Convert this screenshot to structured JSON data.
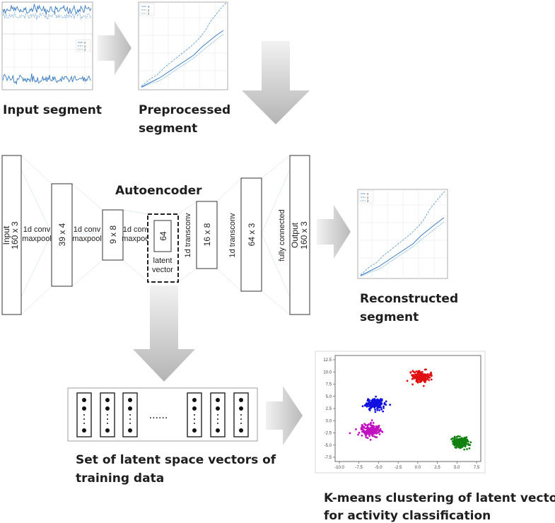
{
  "captions": {
    "input_segment": "Input segment",
    "preprocessed_line1": "Preprocessed",
    "preprocessed_line2": "segment",
    "autoencoder": "Autoencoder",
    "reconstructed_line1": "Reconstructed",
    "reconstructed_line2": "segment",
    "latent_set_line1": "Set of latent space vectors of",
    "latent_set_line2": "training data",
    "kmeans_line1": "K-means clustering of latent vectors",
    "kmeans_line2": "for activity classification"
  },
  "layers": {
    "input_name": "Input",
    "input_shape": "160 x 3",
    "op1": "1d conv",
    "op1b": "maxpool",
    "l1": "39 x 4",
    "op2": "1d conv",
    "op2b": "maxpool",
    "l2": "9 x 8",
    "op3": "1d conv",
    "op3b": "maxpool",
    "latent": "64",
    "latent_l1": "latent",
    "latent_l2": "vector",
    "op4": "1d transconv",
    "l4": "16 x 8",
    "op5": "1d transconv",
    "l5": "64 x 3",
    "op6": "fully connected",
    "output_name": "Output",
    "output_shape": "160 x 3"
  },
  "legend": {
    "x": "x",
    "y": "y",
    "z": "z"
  },
  "vectors_ellipsis": "......",
  "colors": {
    "series": "#3b7bbf",
    "arrow": "#c8c8c8",
    "cluster_red": "#e01010",
    "cluster_blue": "#1010e0",
    "cluster_magenta": "#c010c0",
    "cluster_green": "#108010"
  },
  "chart_data": {
    "type": "scatter",
    "xlim": [
      -10.0,
      7.5
    ],
    "ylim": [
      -7.5,
      12.5
    ],
    "x_ticks": [
      "-10.0",
      "-7.5",
      "-5.0",
      "-2.5",
      "0.0",
      "2.5",
      "5.0",
      "7.5"
    ],
    "y_ticks": [
      "12.5",
      "10.0",
      "7.5",
      "5.0",
      "2.5",
      "0.0",
      "-2.5",
      "-5.0",
      "-7.5"
    ],
    "clusters": [
      {
        "color": "#e01010",
        "center": [
          0.5,
          9.0
        ],
        "spread": 0.9,
        "count": 170
      },
      {
        "color": "#1010e0",
        "center": [
          -5.5,
          3.5
        ],
        "spread": 1.0,
        "count": 190
      },
      {
        "color": "#c010c0",
        "center": [
          -6.0,
          -2.0
        ],
        "spread": 1.1,
        "count": 180
      },
      {
        "color": "#108010",
        "center": [
          5.5,
          -4.5
        ],
        "spread": 0.9,
        "count": 170
      }
    ]
  }
}
